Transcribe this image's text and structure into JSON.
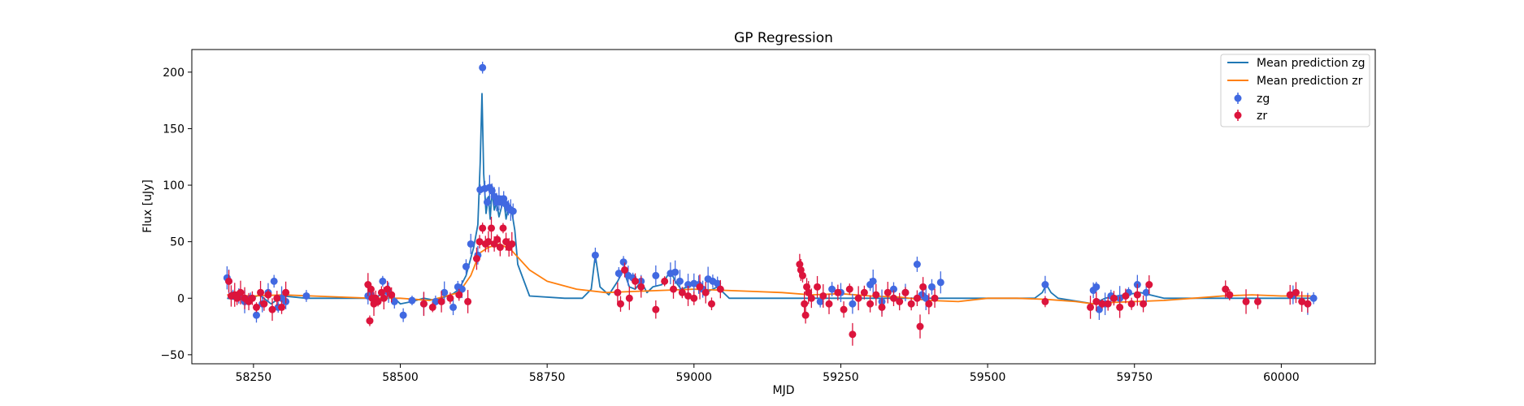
{
  "chart_data": {
    "type": "scatter",
    "title": "GP Regression",
    "xlabel": "MJD",
    "ylabel": "Flux [uJy]",
    "xlim": [
      58145,
      60160
    ],
    "ylim": [
      -58,
      220
    ],
    "xticks": [
      58250,
      58500,
      58750,
      59000,
      59250,
      59500,
      59750,
      60000
    ],
    "yticks": [
      -50,
      0,
      50,
      100,
      150,
      200
    ],
    "legend_location": "upper right",
    "legend": [
      "Mean prediction zg",
      "Mean prediction zr",
      "zg",
      "zr"
    ],
    "colors": {
      "mean_zg": "#1f77b4",
      "mean_zr": "#ff7f0e",
      "zg": "#4169e1",
      "zr": "#dc143c"
    },
    "mean_zg": {
      "name": "Mean prediction zg",
      "x": [
        58205,
        58240,
        58260,
        58280,
        58300,
        58340,
        58400,
        58450,
        58480,
        58500,
        58520,
        58540,
        58560,
        58580,
        58590,
        58600,
        58612,
        58625,
        58632,
        58636,
        58639,
        58642,
        58646,
        58650,
        58653,
        58656,
        58660,
        58664,
        58668,
        58672,
        58676,
        58680,
        58684,
        58690,
        58695,
        58700,
        58720,
        58780,
        58810,
        58825,
        58832,
        58840,
        58855,
        58870,
        58880,
        58890,
        58900,
        58910,
        58920,
        58930,
        58945,
        58955,
        58962,
        58968,
        58978,
        59000,
        59020,
        59040,
        59060,
        59200,
        59300,
        59380,
        59390,
        59400,
        59420,
        59500,
        59580,
        59593,
        59600,
        59608,
        59620,
        59680,
        59700,
        59720,
        59760,
        59800,
        59900,
        60000,
        60050
      ],
      "y": [
        0,
        -2,
        3,
        -5,
        2,
        0,
        0,
        0,
        5,
        -5,
        -3,
        0,
        -2,
        2,
        4,
        8,
        20,
        45,
        65,
        120,
        181,
        110,
        75,
        90,
        70,
        95,
        78,
        85,
        72,
        80,
        88,
        70,
        80,
        76,
        60,
        30,
        2,
        0,
        0,
        8,
        38,
        10,
        3,
        15,
        25,
        10,
        8,
        15,
        5,
        10,
        12,
        20,
        22,
        15,
        8,
        12,
        5,
        10,
        0,
        0,
        0,
        0,
        5,
        0,
        0,
        0,
        0,
        5,
        12,
        5,
        0,
        -5,
        0,
        2,
        5,
        0,
        0,
        0,
        0
      ]
    },
    "mean_zr": {
      "name": "Mean prediction zr",
      "x": [
        58205,
        58250,
        58300,
        58350,
        58400,
        58450,
        58500,
        58550,
        58600,
        58620,
        58635,
        58650,
        58670,
        58690,
        58720,
        58750,
        58800,
        58850,
        58900,
        58950,
        59000,
        59050,
        59100,
        59150,
        59200,
        59250,
        59300,
        59350,
        59400,
        59450,
        59500,
        59550,
        59600,
        59650,
        59680,
        59700,
        59750,
        59800,
        59850,
        59900,
        59950,
        60000,
        60050
      ],
      "y": [
        3,
        2,
        3,
        2,
        1,
        0,
        0,
        -2,
        5,
        20,
        40,
        45,
        48,
        42,
        25,
        15,
        8,
        5,
        6,
        7,
        8,
        7,
        6,
        5,
        3,
        4,
        2,
        1,
        -2,
        -3,
        0,
        0,
        -1,
        -3,
        -5,
        -4,
        -3,
        -2,
        0,
        2,
        3,
        2,
        2
      ]
    },
    "zg": {
      "name": "zg",
      "x": [
        58205,
        58208,
        58215,
        58225,
        58235,
        58245,
        58255,
        58265,
        58275,
        58285,
        58292,
        58298,
        58305,
        58340,
        58445,
        58450,
        58470,
        58480,
        58490,
        58505,
        58520,
        58540,
        58560,
        58575,
        58590,
        58598,
        58605,
        58612,
        58620,
        58632,
        58636,
        58640,
        58644,
        58648,
        58652,
        58656,
        58660,
        58664,
        58668,
        58672,
        58676,
        58680,
        58684,
        58688,
        58692,
        58832,
        58872,
        58880,
        58888,
        58896,
        58910,
        58935,
        58960,
        58968,
        58976,
        58990,
        59000,
        59008,
        59015,
        59024,
        59032,
        59040,
        59215,
        59235,
        59250,
        59270,
        59300,
        59305,
        59320,
        59340,
        59360,
        59380,
        59388,
        59395,
        59405,
        59420,
        59598,
        59680,
        59685,
        59690,
        59700,
        59710,
        59725,
        59740,
        59755,
        59770,
        60020,
        60045,
        60055
      ],
      "y": [
        18,
        15,
        3,
        2,
        -3,
        0,
        -15,
        -5,
        5,
        15,
        -8,
        0,
        -3,
        2,
        2,
        3,
        15,
        5,
        -3,
        -15,
        -2,
        -5,
        -3,
        5,
        -8,
        10,
        8,
        28,
        48,
        38,
        96,
        204,
        97,
        85,
        98,
        95,
        90,
        85,
        88,
        85,
        88,
        83,
        80,
        78,
        77,
        38,
        22,
        32,
        20,
        18,
        15,
        20,
        22,
        23,
        15,
        12,
        13,
        12,
        8,
        17,
        15,
        13,
        -3,
        8,
        5,
        -5,
        12,
        15,
        -3,
        8,
        5,
        30,
        3,
        0,
        10,
        14,
        12,
        7,
        10,
        -10,
        -5,
        2,
        0,
        5,
        12,
        5,
        3,
        -5,
        0
      ]
    },
    "zr": {
      "name": "zr",
      "x": [
        58208,
        58212,
        58218,
        58222,
        58228,
        58235,
        58242,
        58248,
        58255,
        58262,
        58268,
        58275,
        58282,
        58290,
        58298,
        58305,
        58445,
        58448,
        58450,
        58452,
        58455,
        58458,
        58462,
        58468,
        58472,
        58478,
        58485,
        58540,
        58555,
        58570,
        58585,
        58600,
        58615,
        58630,
        58635,
        58640,
        58645,
        58650,
        58655,
        58660,
        58665,
        58670,
        58675,
        58680,
        58685,
        58690,
        58870,
        58875,
        58882,
        58890,
        58900,
        58910,
        58935,
        58950,
        58965,
        58980,
        58990,
        59000,
        59010,
        59020,
        59030,
        59045,
        59180,
        59182,
        59185,
        59188,
        59190,
        59192,
        59195,
        59200,
        59210,
        59220,
        59230,
        59245,
        59255,
        59265,
        59270,
        59280,
        59290,
        59300,
        59310,
        59320,
        59330,
        59340,
        59350,
        59360,
        59370,
        59380,
        59385,
        59390,
        59400,
        59410,
        59598,
        59675,
        59685,
        59695,
        59705,
        59715,
        59725,
        59735,
        59745,
        59755,
        59765,
        59775,
        59905,
        59912,
        59940,
        59960,
        60015,
        60025,
        60035,
        60045
      ],
      "y": [
        15,
        2,
        3,
        0,
        5,
        0,
        -3,
        0,
        -8,
        5,
        -5,
        3,
        -10,
        0,
        -8,
        5,
        12,
        -20,
        8,
        0,
        -5,
        0,
        -3,
        5,
        0,
        8,
        3,
        -5,
        -8,
        -3,
        0,
        3,
        -3,
        35,
        50,
        62,
        48,
        50,
        62,
        48,
        52,
        45,
        62,
        50,
        45,
        48,
        5,
        -5,
        25,
        0,
        15,
        10,
        -10,
        15,
        8,
        5,
        2,
        0,
        10,
        5,
        -5,
        8,
        30,
        25,
        20,
        -5,
        -15,
        10,
        5,
        0,
        10,
        2,
        -5,
        5,
        -10,
        8,
        -32,
        0,
        5,
        -5,
        3,
        -8,
        5,
        0,
        -3,
        5,
        -5,
        0,
        -25,
        10,
        -5,
        0,
        -3,
        -8,
        -3,
        -5,
        -5,
        0,
        -8,
        2,
        -5,
        3,
        -5,
        12,
        8,
        3,
        -3,
        -3,
        3,
        5,
        -3,
        -5
      ]
    }
  }
}
